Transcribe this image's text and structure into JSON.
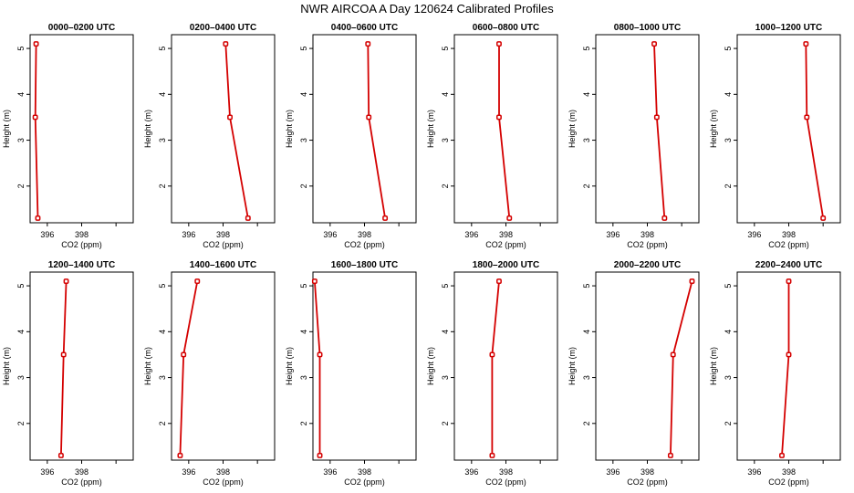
{
  "title": "NWR AIRCOA A  Day 120624  Calibrated Profiles",
  "colors": {
    "series": "#d40000",
    "axis": "#000000",
    "background": "#ffffff"
  },
  "chart_data": [
    {
      "type": "line",
      "title": "0000–0200 UTC",
      "xlabel": "CO2 (ppm)",
      "ylabel": "Height (m)",
      "xlim": [
        395,
        401
      ],
      "ylim": [
        1.2,
        5.3
      ],
      "xticks": [
        {
          "value": 396,
          "label": "396"
        },
        {
          "value": 398,
          "label": "398"
        }
      ],
      "yticks": [
        {
          "value": 2,
          "label": "2"
        },
        {
          "value": 3,
          "label": "3"
        },
        {
          "value": 4,
          "label": "4"
        },
        {
          "value": 5,
          "label": "5"
        }
      ],
      "x": [
        395.45,
        395.3,
        395.35
      ],
      "y": [
        1.3,
        3.5,
        5.1
      ]
    },
    {
      "type": "line",
      "title": "0200–0400 UTC",
      "xlabel": "CO2 (ppm)",
      "ylabel": "Height (m)",
      "xlim": [
        395,
        401
      ],
      "ylim": [
        1.2,
        5.3
      ],
      "xticks": [
        {
          "value": 396,
          "label": "396"
        },
        {
          "value": 398,
          "label": "398"
        }
      ],
      "yticks": [
        {
          "value": 2,
          "label": "2"
        },
        {
          "value": 3,
          "label": "3"
        },
        {
          "value": 4,
          "label": "4"
        },
        {
          "value": 5,
          "label": "5"
        }
      ],
      "x": [
        399.45,
        398.4,
        398.15
      ],
      "y": [
        1.3,
        3.5,
        5.1
      ]
    },
    {
      "type": "line",
      "title": "0400–0600 UTC",
      "xlabel": "CO2 (ppm)",
      "ylabel": "Height (m)",
      "xlim": [
        395,
        401
      ],
      "ylim": [
        1.2,
        5.3
      ],
      "xticks": [
        {
          "value": 396,
          "label": "396"
        },
        {
          "value": 398,
          "label": "398"
        }
      ],
      "yticks": [
        {
          "value": 2,
          "label": "2"
        },
        {
          "value": 3,
          "label": "3"
        },
        {
          "value": 4,
          "label": "4"
        },
        {
          "value": 5,
          "label": "5"
        }
      ],
      "x": [
        399.2,
        398.25,
        398.2
      ],
      "y": [
        1.3,
        3.5,
        5.1
      ]
    },
    {
      "type": "line",
      "title": "0600–0800 UTC",
      "xlabel": "CO2 (ppm)",
      "ylabel": "Height (m)",
      "xlim": [
        395,
        401
      ],
      "ylim": [
        1.2,
        5.3
      ],
      "xticks": [
        {
          "value": 396,
          "label": "396"
        },
        {
          "value": 398,
          "label": "398"
        }
      ],
      "yticks": [
        {
          "value": 2,
          "label": "2"
        },
        {
          "value": 3,
          "label": "3"
        },
        {
          "value": 4,
          "label": "4"
        },
        {
          "value": 5,
          "label": "5"
        }
      ],
      "x": [
        398.2,
        397.6,
        397.6
      ],
      "y": [
        1.3,
        3.5,
        5.1
      ]
    },
    {
      "type": "line",
      "title": "0800–1000 UTC",
      "xlabel": "CO2 (ppm)",
      "ylabel": "Height (m)",
      "xlim": [
        395,
        401
      ],
      "ylim": [
        1.2,
        5.3
      ],
      "xticks": [
        {
          "value": 396,
          "label": "396"
        },
        {
          "value": 398,
          "label": "398"
        }
      ],
      "yticks": [
        {
          "value": 2,
          "label": "2"
        },
        {
          "value": 3,
          "label": "3"
        },
        {
          "value": 4,
          "label": "4"
        },
        {
          "value": 5,
          "label": "5"
        }
      ],
      "x": [
        399.0,
        398.55,
        398.4
      ],
      "y": [
        1.3,
        3.5,
        5.1
      ]
    },
    {
      "type": "line",
      "title": "1000–1200 UTC",
      "xlabel": "CO2 (ppm)",
      "ylabel": "Height (m)",
      "xlim": [
        395,
        401
      ],
      "ylim": [
        1.2,
        5.3
      ],
      "xticks": [
        {
          "value": 396,
          "label": "396"
        },
        {
          "value": 398,
          "label": "398"
        }
      ],
      "yticks": [
        {
          "value": 2,
          "label": "2"
        },
        {
          "value": 3,
          "label": "3"
        },
        {
          "value": 4,
          "label": "4"
        },
        {
          "value": 5,
          "label": "5"
        }
      ],
      "x": [
        400.0,
        399.05,
        399.0
      ],
      "y": [
        1.3,
        3.5,
        5.1
      ]
    },
    {
      "type": "line",
      "title": "1200–1400 UTC",
      "xlabel": "CO2 (ppm)",
      "ylabel": "Height (m)",
      "xlim": [
        395,
        401
      ],
      "ylim": [
        1.2,
        5.3
      ],
      "xticks": [
        {
          "value": 396,
          "label": "396"
        },
        {
          "value": 398,
          "label": "398"
        }
      ],
      "yticks": [
        {
          "value": 2,
          "label": "2"
        },
        {
          "value": 3,
          "label": "3"
        },
        {
          "value": 4,
          "label": "4"
        },
        {
          "value": 5,
          "label": "5"
        }
      ],
      "x": [
        396.8,
        396.95,
        397.1
      ],
      "y": [
        1.3,
        3.5,
        5.1
      ]
    },
    {
      "type": "line",
      "title": "1400–1600 UTC",
      "xlabel": "CO2 (ppm)",
      "ylabel": "Height (m)",
      "xlim": [
        395,
        401
      ],
      "ylim": [
        1.2,
        5.3
      ],
      "xticks": [
        {
          "value": 396,
          "label": "396"
        },
        {
          "value": 398,
          "label": "398"
        }
      ],
      "yticks": [
        {
          "value": 2,
          "label": "2"
        },
        {
          "value": 3,
          "label": "3"
        },
        {
          "value": 4,
          "label": "4"
        },
        {
          "value": 5,
          "label": "5"
        }
      ],
      "x": [
        395.5,
        395.7,
        396.5
      ],
      "y": [
        1.3,
        3.5,
        5.1
      ]
    },
    {
      "type": "line",
      "title": "1600–1800 UTC",
      "xlabel": "CO2 (ppm)",
      "ylabel": "Height (m)",
      "xlim": [
        395,
        401
      ],
      "ylim": [
        1.2,
        5.3
      ],
      "xticks": [
        {
          "value": 396,
          "label": "396"
        },
        {
          "value": 398,
          "label": "398"
        }
      ],
      "yticks": [
        {
          "value": 2,
          "label": "2"
        },
        {
          "value": 3,
          "label": "3"
        },
        {
          "value": 4,
          "label": "4"
        },
        {
          "value": 5,
          "label": "5"
        }
      ],
      "x": [
        395.4,
        395.4,
        395.1
      ],
      "y": [
        1.3,
        3.5,
        5.1
      ]
    },
    {
      "type": "line",
      "title": "1800–2000 UTC",
      "xlabel": "CO2 (ppm)",
      "ylabel": "Height (m)",
      "xlim": [
        395,
        401
      ],
      "ylim": [
        1.2,
        5.3
      ],
      "xticks": [
        {
          "value": 396,
          "label": "396"
        },
        {
          "value": 398,
          "label": "398"
        }
      ],
      "yticks": [
        {
          "value": 2,
          "label": "2"
        },
        {
          "value": 3,
          "label": "3"
        },
        {
          "value": 4,
          "label": "4"
        },
        {
          "value": 5,
          "label": "5"
        }
      ],
      "x": [
        397.2,
        397.2,
        397.6
      ],
      "y": [
        1.3,
        3.5,
        5.1
      ]
    },
    {
      "type": "line",
      "title": "2000–2200 UTC",
      "xlabel": "CO2 (ppm)",
      "ylabel": "Height (m)",
      "xlim": [
        395,
        401
      ],
      "ylim": [
        1.2,
        5.3
      ],
      "xticks": [
        {
          "value": 396,
          "label": "396"
        },
        {
          "value": 398,
          "label": "398"
        }
      ],
      "yticks": [
        {
          "value": 2,
          "label": "2"
        },
        {
          "value": 3,
          "label": "3"
        },
        {
          "value": 4,
          "label": "4"
        },
        {
          "value": 5,
          "label": "5"
        }
      ],
      "x": [
        399.35,
        399.5,
        400.6
      ],
      "y": [
        1.3,
        3.5,
        5.1
      ]
    },
    {
      "type": "line",
      "title": "2200–2400 UTC",
      "xlabel": "CO2 (ppm)",
      "ylabel": "Height (m)",
      "xlim": [
        395,
        401
      ],
      "ylim": [
        1.2,
        5.3
      ],
      "xticks": [
        {
          "value": 396,
          "label": "396"
        },
        {
          "value": 398,
          "label": "398"
        }
      ],
      "yticks": [
        {
          "value": 2,
          "label": "2"
        },
        {
          "value": 3,
          "label": "3"
        },
        {
          "value": 4,
          "label": "4"
        },
        {
          "value": 5,
          "label": "5"
        }
      ],
      "x": [
        397.6,
        398.0,
        398.0
      ],
      "y": [
        1.3,
        3.5,
        5.1
      ]
    }
  ]
}
